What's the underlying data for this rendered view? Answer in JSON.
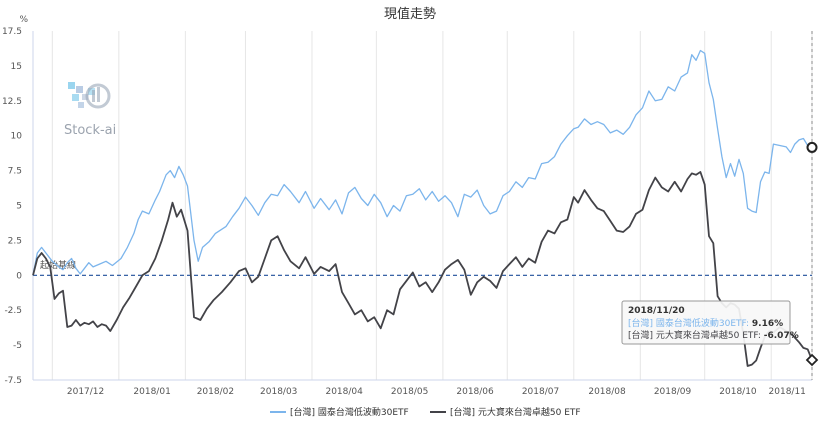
{
  "chart_data": {
    "type": "line",
    "title": "現值走勢",
    "y_unit": "%",
    "y_ticks": [
      "17.5",
      "15",
      "12.5",
      "10",
      "7.5",
      "5",
      "2.5",
      "0",
      "-2.5",
      "-5",
      "-7.5"
    ],
    "ylim": [
      -7.5,
      17.5
    ],
    "x_ticks": [
      "2017/12",
      "2018/01",
      "2018/02",
      "2018/03",
      "2018/04",
      "2018/05",
      "2018/06",
      "2018/07",
      "2018/08",
      "2018/09",
      "2018/10",
      "2018/11"
    ],
    "x_tick_dates": [
      "2017-12-01",
      "2018-01-01",
      "2018-02-01",
      "2018-03-01",
      "2018-04-01",
      "2018-05-01",
      "2018-06-01",
      "2018-07-01",
      "2018-08-01",
      "2018-09-01",
      "2018-10-01",
      "2018-11-01"
    ],
    "xlim": [
      "2017-11-22",
      "2018-11-20"
    ],
    "baseline_label": "起始基線",
    "grid": "vertical",
    "legend_position": "bottom",
    "series": [
      {
        "name": "[台灣] 國泰台灣低波動30ETF",
        "color": "#7cb5ec",
        "points": [
          [
            "2017-11-22",
            0.0
          ],
          [
            "2017-11-24",
            1.6
          ],
          [
            "2017-11-26",
            2.0
          ],
          [
            "2017-11-28",
            1.6
          ],
          [
            "2017-12-01",
            1.0
          ],
          [
            "2017-12-04",
            0.6
          ],
          [
            "2017-12-06",
            0.4
          ],
          [
            "2017-12-08",
            0.9
          ],
          [
            "2017-12-10",
            1.2
          ],
          [
            "2017-12-12",
            0.5
          ],
          [
            "2017-12-14",
            0.1
          ],
          [
            "2017-12-16",
            0.5
          ],
          [
            "2017-12-18",
            0.9
          ],
          [
            "2017-12-20",
            0.6
          ],
          [
            "2017-12-23",
            0.8
          ],
          [
            "2017-12-26",
            1.0
          ],
          [
            "2017-12-29",
            0.7
          ],
          [
            "2018-01-02",
            1.2
          ],
          [
            "2018-01-05",
            2.0
          ],
          [
            "2018-01-08",
            3.0
          ],
          [
            "2018-01-10",
            4.0
          ],
          [
            "2018-01-12",
            4.6
          ],
          [
            "2018-01-15",
            4.4
          ],
          [
            "2018-01-18",
            5.4
          ],
          [
            "2018-01-20",
            6.0
          ],
          [
            "2018-01-23",
            7.2
          ],
          [
            "2018-01-25",
            7.5
          ],
          [
            "2018-01-27",
            7.0
          ],
          [
            "2018-01-29",
            7.8
          ],
          [
            "2018-01-31",
            7.2
          ],
          [
            "2018-02-02",
            6.4
          ],
          [
            "2018-02-05",
            2.5
          ],
          [
            "2018-02-07",
            1.0
          ],
          [
            "2018-02-09",
            2.0
          ],
          [
            "2018-02-12",
            2.4
          ],
          [
            "2018-02-15",
            3.0
          ],
          [
            "2018-02-20",
            3.5
          ],
          [
            "2018-02-23",
            4.2
          ],
          [
            "2018-02-26",
            4.8
          ],
          [
            "2018-03-01",
            5.6
          ],
          [
            "2018-03-04",
            5.0
          ],
          [
            "2018-03-07",
            4.3
          ],
          [
            "2018-03-10",
            5.2
          ],
          [
            "2018-03-13",
            5.8
          ],
          [
            "2018-03-16",
            5.7
          ],
          [
            "2018-03-19",
            6.5
          ],
          [
            "2018-03-22",
            6.0
          ],
          [
            "2018-03-26",
            5.2
          ],
          [
            "2018-03-29",
            6.0
          ],
          [
            "2018-04-02",
            4.8
          ],
          [
            "2018-04-05",
            5.5
          ],
          [
            "2018-04-09",
            4.7
          ],
          [
            "2018-04-12",
            5.4
          ],
          [
            "2018-04-15",
            4.4
          ],
          [
            "2018-04-18",
            5.9
          ],
          [
            "2018-04-21",
            6.3
          ],
          [
            "2018-04-24",
            5.5
          ],
          [
            "2018-04-27",
            5.0
          ],
          [
            "2018-04-30",
            5.8
          ],
          [
            "2018-05-03",
            5.2
          ],
          [
            "2018-05-06",
            4.2
          ],
          [
            "2018-05-09",
            5.0
          ],
          [
            "2018-05-12",
            4.6
          ],
          [
            "2018-05-15",
            5.7
          ],
          [
            "2018-05-18",
            5.8
          ],
          [
            "2018-05-21",
            6.2
          ],
          [
            "2018-05-24",
            5.4
          ],
          [
            "2018-05-27",
            6.0
          ],
          [
            "2018-05-30",
            5.3
          ],
          [
            "2018-06-02",
            5.7
          ],
          [
            "2018-06-05",
            5.2
          ],
          [
            "2018-06-08",
            4.2
          ],
          [
            "2018-06-11",
            5.8
          ],
          [
            "2018-06-14",
            5.6
          ],
          [
            "2018-06-17",
            6.1
          ],
          [
            "2018-06-20",
            5.0
          ],
          [
            "2018-06-23",
            4.4
          ],
          [
            "2018-06-26",
            4.6
          ],
          [
            "2018-06-29",
            5.7
          ],
          [
            "2018-07-02",
            6.0
          ],
          [
            "2018-07-05",
            6.7
          ],
          [
            "2018-07-08",
            6.3
          ],
          [
            "2018-07-11",
            7.0
          ],
          [
            "2018-07-14",
            6.9
          ],
          [
            "2018-07-17",
            8.0
          ],
          [
            "2018-07-20",
            8.1
          ],
          [
            "2018-07-23",
            8.5
          ],
          [
            "2018-07-26",
            9.4
          ],
          [
            "2018-07-29",
            10.0
          ],
          [
            "2018-08-01",
            10.5
          ],
          [
            "2018-08-03",
            10.6
          ],
          [
            "2018-08-06",
            11.2
          ],
          [
            "2018-08-09",
            10.8
          ],
          [
            "2018-08-12",
            11.0
          ],
          [
            "2018-08-15",
            10.8
          ],
          [
            "2018-08-18",
            10.2
          ],
          [
            "2018-08-21",
            10.4
          ],
          [
            "2018-08-24",
            10.1
          ],
          [
            "2018-08-27",
            10.6
          ],
          [
            "2018-08-30",
            11.5
          ],
          [
            "2018-09-02",
            12.0
          ],
          [
            "2018-09-05",
            13.2
          ],
          [
            "2018-09-08",
            12.5
          ],
          [
            "2018-09-11",
            12.6
          ],
          [
            "2018-09-14",
            13.5
          ],
          [
            "2018-09-17",
            13.2
          ],
          [
            "2018-09-20",
            14.2
          ],
          [
            "2018-09-23",
            14.5
          ],
          [
            "2018-09-25",
            15.8
          ],
          [
            "2018-09-27",
            15.4
          ],
          [
            "2018-09-29",
            16.1
          ],
          [
            "2018-10-01",
            15.9
          ],
          [
            "2018-10-03",
            13.8
          ],
          [
            "2018-10-05",
            12.6
          ],
          [
            "2018-10-07",
            10.5
          ],
          [
            "2018-10-09",
            8.5
          ],
          [
            "2018-10-11",
            7.0
          ],
          [
            "2018-10-13",
            8.0
          ],
          [
            "2018-10-15",
            7.1
          ],
          [
            "2018-10-17",
            8.3
          ],
          [
            "2018-10-19",
            7.3
          ],
          [
            "2018-10-21",
            4.8
          ],
          [
            "2018-10-23",
            4.6
          ],
          [
            "2018-10-25",
            4.5
          ],
          [
            "2018-10-27",
            6.7
          ],
          [
            "2018-10-29",
            7.4
          ],
          [
            "2018-10-31",
            7.3
          ],
          [
            "2018-11-02",
            9.4
          ],
          [
            "2018-11-05",
            9.3
          ],
          [
            "2018-11-08",
            9.2
          ],
          [
            "2018-11-10",
            8.8
          ],
          [
            "2018-11-12",
            9.4
          ],
          [
            "2018-11-14",
            9.7
          ],
          [
            "2018-11-16",
            9.8
          ],
          [
            "2018-11-18",
            9.3
          ],
          [
            "2018-11-20",
            9.16
          ]
        ]
      },
      {
        "name": "[台灣] 元大寶來台灣卓越50 ETF",
        "color": "#434348",
        "points": [
          [
            "2017-11-22",
            0.0
          ],
          [
            "2017-11-24",
            1.2
          ],
          [
            "2017-11-26",
            1.6
          ],
          [
            "2017-11-28",
            1.2
          ],
          [
            "2017-11-30",
            0.6
          ],
          [
            "2017-12-02",
            -1.7
          ],
          [
            "2017-12-04",
            -1.3
          ],
          [
            "2017-12-06",
            -1.1
          ],
          [
            "2017-12-08",
            -3.7
          ],
          [
            "2017-12-10",
            -3.6
          ],
          [
            "2017-12-12",
            -3.2
          ],
          [
            "2017-12-14",
            -3.6
          ],
          [
            "2017-12-16",
            -3.4
          ],
          [
            "2017-12-18",
            -3.5
          ],
          [
            "2017-12-20",
            -3.3
          ],
          [
            "2017-12-22",
            -3.7
          ],
          [
            "2017-12-24",
            -3.5
          ],
          [
            "2017-12-26",
            -3.6
          ],
          [
            "2017-12-28",
            -4.0
          ],
          [
            "2017-12-31",
            -3.2
          ],
          [
            "2018-01-03",
            -2.3
          ],
          [
            "2018-01-06",
            -1.6
          ],
          [
            "2018-01-09",
            -0.8
          ],
          [
            "2018-01-12",
            0.0
          ],
          [
            "2018-01-15",
            0.3
          ],
          [
            "2018-01-18",
            1.2
          ],
          [
            "2018-01-21",
            2.5
          ],
          [
            "2018-01-24",
            4.0
          ],
          [
            "2018-01-26",
            5.2
          ],
          [
            "2018-01-28",
            4.2
          ],
          [
            "2018-01-30",
            4.7
          ],
          [
            "2018-02-02",
            3.2
          ],
          [
            "2018-02-05",
            -3.0
          ],
          [
            "2018-02-08",
            -3.2
          ],
          [
            "2018-02-11",
            -2.4
          ],
          [
            "2018-02-14",
            -1.8
          ],
          [
            "2018-02-18",
            -1.2
          ],
          [
            "2018-02-22",
            -0.5
          ],
          [
            "2018-02-26",
            0.3
          ],
          [
            "2018-03-01",
            0.5
          ],
          [
            "2018-03-04",
            -0.5
          ],
          [
            "2018-03-07",
            -0.1
          ],
          [
            "2018-03-10",
            1.2
          ],
          [
            "2018-03-13",
            2.5
          ],
          [
            "2018-03-16",
            2.8
          ],
          [
            "2018-03-19",
            1.8
          ],
          [
            "2018-03-22",
            1.0
          ],
          [
            "2018-03-26",
            0.5
          ],
          [
            "2018-03-29",
            1.3
          ],
          [
            "2018-04-02",
            0.1
          ],
          [
            "2018-04-05",
            0.6
          ],
          [
            "2018-04-09",
            0.3
          ],
          [
            "2018-04-12",
            0.8
          ],
          [
            "2018-04-15",
            -1.2
          ],
          [
            "2018-04-18",
            -2.0
          ],
          [
            "2018-04-21",
            -2.8
          ],
          [
            "2018-04-24",
            -2.5
          ],
          [
            "2018-04-27",
            -3.3
          ],
          [
            "2018-04-30",
            -3.0
          ],
          [
            "2018-05-03",
            -3.8
          ],
          [
            "2018-05-06",
            -2.5
          ],
          [
            "2018-05-09",
            -2.8
          ],
          [
            "2018-05-12",
            -1.0
          ],
          [
            "2018-05-15",
            -0.4
          ],
          [
            "2018-05-18",
            0.2
          ],
          [
            "2018-05-21",
            -0.8
          ],
          [
            "2018-05-24",
            -0.5
          ],
          [
            "2018-05-27",
            -1.2
          ],
          [
            "2018-05-30",
            -0.5
          ],
          [
            "2018-06-02",
            0.4
          ],
          [
            "2018-06-05",
            0.8
          ],
          [
            "2018-06-08",
            1.1
          ],
          [
            "2018-06-11",
            0.4
          ],
          [
            "2018-06-14",
            -1.4
          ],
          [
            "2018-06-17",
            -0.5
          ],
          [
            "2018-06-20",
            -0.1
          ],
          [
            "2018-06-23",
            -0.4
          ],
          [
            "2018-06-26",
            -0.9
          ],
          [
            "2018-06-29",
            0.3
          ],
          [
            "2018-07-02",
            0.8
          ],
          [
            "2018-07-05",
            1.3
          ],
          [
            "2018-07-08",
            0.6
          ],
          [
            "2018-07-11",
            1.2
          ],
          [
            "2018-07-14",
            0.9
          ],
          [
            "2018-07-17",
            2.4
          ],
          [
            "2018-07-20",
            3.2
          ],
          [
            "2018-07-23",
            3.0
          ],
          [
            "2018-07-26",
            3.8
          ],
          [
            "2018-07-29",
            4.0
          ],
          [
            "2018-08-01",
            5.6
          ],
          [
            "2018-08-03",
            5.2
          ],
          [
            "2018-08-06",
            6.1
          ],
          [
            "2018-08-09",
            5.4
          ],
          [
            "2018-08-12",
            4.8
          ],
          [
            "2018-08-15",
            4.6
          ],
          [
            "2018-08-18",
            3.9
          ],
          [
            "2018-08-21",
            3.2
          ],
          [
            "2018-08-24",
            3.1
          ],
          [
            "2018-08-27",
            3.5
          ],
          [
            "2018-08-30",
            4.4
          ],
          [
            "2018-09-02",
            4.7
          ],
          [
            "2018-09-05",
            6.1
          ],
          [
            "2018-09-08",
            7.0
          ],
          [
            "2018-09-11",
            6.3
          ],
          [
            "2018-09-14",
            6.0
          ],
          [
            "2018-09-17",
            6.7
          ],
          [
            "2018-09-20",
            6.0
          ],
          [
            "2018-09-23",
            6.9
          ],
          [
            "2018-09-25",
            7.3
          ],
          [
            "2018-09-27",
            7.2
          ],
          [
            "2018-09-29",
            7.4
          ],
          [
            "2018-10-01",
            6.5
          ],
          [
            "2018-10-03",
            2.8
          ],
          [
            "2018-10-05",
            2.3
          ],
          [
            "2018-10-07",
            -1.5
          ],
          [
            "2018-10-09",
            -2.0
          ],
          [
            "2018-10-11",
            -2.3
          ],
          [
            "2018-10-13",
            -2.0
          ],
          [
            "2018-10-15",
            -2.1
          ],
          [
            "2018-10-17",
            -2.4
          ],
          [
            "2018-10-19",
            -4.2
          ],
          [
            "2018-10-21",
            -6.5
          ],
          [
            "2018-10-23",
            -6.4
          ],
          [
            "2018-10-25",
            -6.1
          ],
          [
            "2018-10-27",
            -5.2
          ],
          [
            "2018-10-29",
            -4.4
          ],
          [
            "2018-10-31",
            -4.0
          ],
          [
            "2018-11-02",
            -4.1
          ],
          [
            "2018-11-05",
            -3.7
          ],
          [
            "2018-11-08",
            -4.0
          ],
          [
            "2018-11-11",
            -4.3
          ],
          [
            "2018-11-14",
            -4.8
          ],
          [
            "2018-11-16",
            -5.2
          ],
          [
            "2018-11-18",
            -5.3
          ],
          [
            "2018-11-20",
            -6.07
          ]
        ]
      }
    ],
    "tooltip": {
      "date": "2018/11/20",
      "rows": [
        {
          "label": "[台灣] 國泰台灣低波動30ETF: ",
          "value": "9.16%"
        },
        {
          "label": "[台灣] 元大寶來台灣卓越50 ETF: ",
          "value": "-6.07%"
        }
      ]
    }
  },
  "watermark": {
    "text": "Stock-ai"
  },
  "colors": {
    "grid": "#e6e6e6",
    "axis": "#ccd6eb",
    "baseline": "#1f4e99",
    "crosshair": "#888888"
  }
}
